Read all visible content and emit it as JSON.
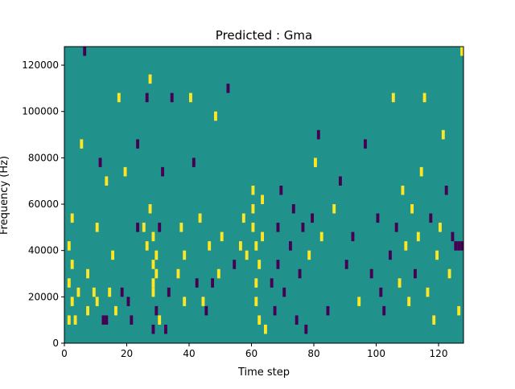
{
  "chart_data": {
    "type": "heatmap",
    "title": "Predicted : Gma",
    "xlabel": "Time step",
    "ylabel": "Frequency (Hz)",
    "xlim": [
      0,
      128
    ],
    "ylim": [
      0,
      128000
    ],
    "x_ticks": [
      0,
      20,
      40,
      60,
      80,
      100,
      120
    ],
    "y_ticks": [
      0,
      20000,
      40000,
      60000,
      80000,
      100000,
      120000
    ],
    "x_tick_labels": [
      "0",
      "20",
      "40",
      "60",
      "80",
      "100",
      "120"
    ],
    "y_tick_labels": [
      "0",
      "20000",
      "40000",
      "60000",
      "80000",
      "100000",
      "120000"
    ],
    "grid": false,
    "legend": "none",
    "colormap": "viridis",
    "value_levels": [
      -1,
      0,
      1
    ],
    "colors": {
      "-1": "#440154",
      "0": "#21918c",
      "1": "#fde725"
    },
    "background_value": 0,
    "cell_height_hz": 4000,
    "cells": [
      {
        "t": 1,
        "f": 8000,
        "v": 1
      },
      {
        "t": 1,
        "f": 24000,
        "v": 1
      },
      {
        "t": 1,
        "f": 40000,
        "v": 1
      },
      {
        "t": 2,
        "f": 16000,
        "v": 1
      },
      {
        "t": 2,
        "f": 32000,
        "v": 1
      },
      {
        "t": 2,
        "f": 52000,
        "v": 1
      },
      {
        "t": 3,
        "f": 8000,
        "v": 1
      },
      {
        "t": 4,
        "f": 20000,
        "v": 1
      },
      {
        "t": 5,
        "f": 84000,
        "v": 1
      },
      {
        "t": 6,
        "f": 124000,
        "v": -1
      },
      {
        "t": 7,
        "f": 12000,
        "v": 1
      },
      {
        "t": 7,
        "f": 28000,
        "v": 1
      },
      {
        "t": 9,
        "f": 20000,
        "v": 1
      },
      {
        "t": 10,
        "f": 16000,
        "v": 1
      },
      {
        "t": 10,
        "f": 48000,
        "v": 1
      },
      {
        "t": 11,
        "f": 76000,
        "v": -1
      },
      {
        "t": 12,
        "f": 8000,
        "v": -1
      },
      {
        "t": 13,
        "f": 8000,
        "v": -1
      },
      {
        "t": 13,
        "f": 68000,
        "v": 1
      },
      {
        "t": 14,
        "f": 20000,
        "v": 1
      },
      {
        "t": 15,
        "f": 36000,
        "v": 1
      },
      {
        "t": 16,
        "f": 12000,
        "v": 1
      },
      {
        "t": 17,
        "f": 104000,
        "v": 1
      },
      {
        "t": 18,
        "f": 20000,
        "v": -1
      },
      {
        "t": 19,
        "f": 72000,
        "v": 1
      },
      {
        "t": 20,
        "f": 16000,
        "v": -1
      },
      {
        "t": 21,
        "f": 8000,
        "v": -1
      },
      {
        "t": 23,
        "f": 48000,
        "v": -1
      },
      {
        "t": 23,
        "f": 84000,
        "v": -1
      },
      {
        "t": 25,
        "f": 48000,
        "v": 1
      },
      {
        "t": 26,
        "f": 40000,
        "v": 1
      },
      {
        "t": 26,
        "f": 104000,
        "v": -1
      },
      {
        "t": 27,
        "f": 56000,
        "v": 1
      },
      {
        "t": 27,
        "f": 112000,
        "v": 1
      },
      {
        "t": 28,
        "f": 4000,
        "v": -1
      },
      {
        "t": 28,
        "f": 20000,
        "v": 1
      },
      {
        "t": 28,
        "f": 24000,
        "v": 1
      },
      {
        "t": 28,
        "f": 32000,
        "v": 1
      },
      {
        "t": 28,
        "f": 44000,
        "v": 1
      },
      {
        "t": 29,
        "f": 12000,
        "v": -1
      },
      {
        "t": 29,
        "f": 28000,
        "v": 1
      },
      {
        "t": 29,
        "f": 36000,
        "v": 1
      },
      {
        "t": 30,
        "f": 8000,
        "v": 1
      },
      {
        "t": 30,
        "f": 48000,
        "v": -1
      },
      {
        "t": 31,
        "f": 72000,
        "v": -1
      },
      {
        "t": 32,
        "f": 4000,
        "v": -1
      },
      {
        "t": 33,
        "f": 20000,
        "v": -1
      },
      {
        "t": 34,
        "f": 104000,
        "v": -1
      },
      {
        "t": 36,
        "f": 28000,
        "v": 1
      },
      {
        "t": 37,
        "f": 48000,
        "v": 1
      },
      {
        "t": 38,
        "f": 16000,
        "v": 1
      },
      {
        "t": 38,
        "f": 36000,
        "v": 1
      },
      {
        "t": 40,
        "f": 104000,
        "v": 1
      },
      {
        "t": 41,
        "f": 76000,
        "v": -1
      },
      {
        "t": 42,
        "f": 24000,
        "v": -1
      },
      {
        "t": 43,
        "f": 52000,
        "v": 1
      },
      {
        "t": 44,
        "f": 16000,
        "v": 1
      },
      {
        "t": 45,
        "f": 12000,
        "v": -1
      },
      {
        "t": 46,
        "f": 40000,
        "v": 1
      },
      {
        "t": 47,
        "f": 24000,
        "v": -1
      },
      {
        "t": 48,
        "f": 96000,
        "v": 1
      },
      {
        "t": 49,
        "f": 28000,
        "v": 1
      },
      {
        "t": 50,
        "f": 44000,
        "v": 1
      },
      {
        "t": 52,
        "f": 108000,
        "v": -1
      },
      {
        "t": 54,
        "f": 32000,
        "v": -1
      },
      {
        "t": 56,
        "f": 40000,
        "v": 1
      },
      {
        "t": 57,
        "f": 52000,
        "v": 1
      },
      {
        "t": 58,
        "f": 36000,
        "v": 1
      },
      {
        "t": 60,
        "f": 64000,
        "v": 1
      },
      {
        "t": 60,
        "f": 56000,
        "v": 1
      },
      {
        "t": 60,
        "f": 48000,
        "v": 1
      },
      {
        "t": 61,
        "f": 40000,
        "v": 1
      },
      {
        "t": 61,
        "f": 24000,
        "v": 1
      },
      {
        "t": 61,
        "f": 16000,
        "v": 1
      },
      {
        "t": 62,
        "f": 8000,
        "v": 1
      },
      {
        "t": 62,
        "f": 32000,
        "v": 1
      },
      {
        "t": 63,
        "f": 60000,
        "v": 1
      },
      {
        "t": 63,
        "f": 44000,
        "v": 1
      },
      {
        "t": 64,
        "f": 4000,
        "v": 1
      },
      {
        "t": 66,
        "f": 24000,
        "v": -1
      },
      {
        "t": 67,
        "f": 12000,
        "v": -1
      },
      {
        "t": 68,
        "f": 32000,
        "v": -1
      },
      {
        "t": 68,
        "f": 48000,
        "v": -1
      },
      {
        "t": 69,
        "f": 64000,
        "v": -1
      },
      {
        "t": 70,
        "f": 20000,
        "v": -1
      },
      {
        "t": 72,
        "f": 40000,
        "v": -1
      },
      {
        "t": 73,
        "f": 56000,
        "v": -1
      },
      {
        "t": 74,
        "f": 8000,
        "v": -1
      },
      {
        "t": 75,
        "f": 28000,
        "v": -1
      },
      {
        "t": 76,
        "f": 48000,
        "v": -1
      },
      {
        "t": 77,
        "f": 4000,
        "v": -1
      },
      {
        "t": 78,
        "f": 36000,
        "v": 1
      },
      {
        "t": 79,
        "f": 52000,
        "v": -1
      },
      {
        "t": 80,
        "f": 76000,
        "v": 1
      },
      {
        "t": 81,
        "f": 88000,
        "v": -1
      },
      {
        "t": 82,
        "f": 44000,
        "v": 1
      },
      {
        "t": 84,
        "f": 12000,
        "v": -1
      },
      {
        "t": 86,
        "f": 56000,
        "v": 1
      },
      {
        "t": 88,
        "f": 68000,
        "v": -1
      },
      {
        "t": 90,
        "f": 32000,
        "v": -1
      },
      {
        "t": 92,
        "f": 44000,
        "v": -1
      },
      {
        "t": 94,
        "f": 16000,
        "v": 1
      },
      {
        "t": 96,
        "f": 84000,
        "v": -1
      },
      {
        "t": 98,
        "f": 28000,
        "v": -1
      },
      {
        "t": 100,
        "f": 52000,
        "v": -1
      },
      {
        "t": 101,
        "f": 20000,
        "v": -1
      },
      {
        "t": 102,
        "f": 12000,
        "v": -1
      },
      {
        "t": 104,
        "f": 36000,
        "v": -1
      },
      {
        "t": 105,
        "f": 104000,
        "v": 1
      },
      {
        "t": 106,
        "f": 48000,
        "v": -1
      },
      {
        "t": 107,
        "f": 24000,
        "v": 1
      },
      {
        "t": 108,
        "f": 64000,
        "v": 1
      },
      {
        "t": 109,
        "f": 40000,
        "v": 1
      },
      {
        "t": 110,
        "f": 16000,
        "v": 1
      },
      {
        "t": 111,
        "f": 56000,
        "v": 1
      },
      {
        "t": 112,
        "f": 28000,
        "v": -1
      },
      {
        "t": 113,
        "f": 44000,
        "v": 1
      },
      {
        "t": 114,
        "f": 72000,
        "v": 1
      },
      {
        "t": 115,
        "f": 104000,
        "v": 1
      },
      {
        "t": 116,
        "f": 20000,
        "v": 1
      },
      {
        "t": 117,
        "f": 52000,
        "v": -1
      },
      {
        "t": 118,
        "f": 8000,
        "v": 1
      },
      {
        "t": 119,
        "f": 36000,
        "v": 1
      },
      {
        "t": 120,
        "f": 48000,
        "v": 1
      },
      {
        "t": 121,
        "f": 88000,
        "v": 1
      },
      {
        "t": 122,
        "f": 64000,
        "v": -1
      },
      {
        "t": 123,
        "f": 28000,
        "v": 1
      },
      {
        "t": 124,
        "f": 44000,
        "v": -1
      },
      {
        "t": 125,
        "f": 40000,
        "v": -1
      },
      {
        "t": 126,
        "f": 40000,
        "v": -1
      },
      {
        "t": 127,
        "f": 40000,
        "v": -1
      },
      {
        "t": 126,
        "f": 12000,
        "v": 1
      },
      {
        "t": 127,
        "f": 124000,
        "v": 1
      }
    ]
  }
}
